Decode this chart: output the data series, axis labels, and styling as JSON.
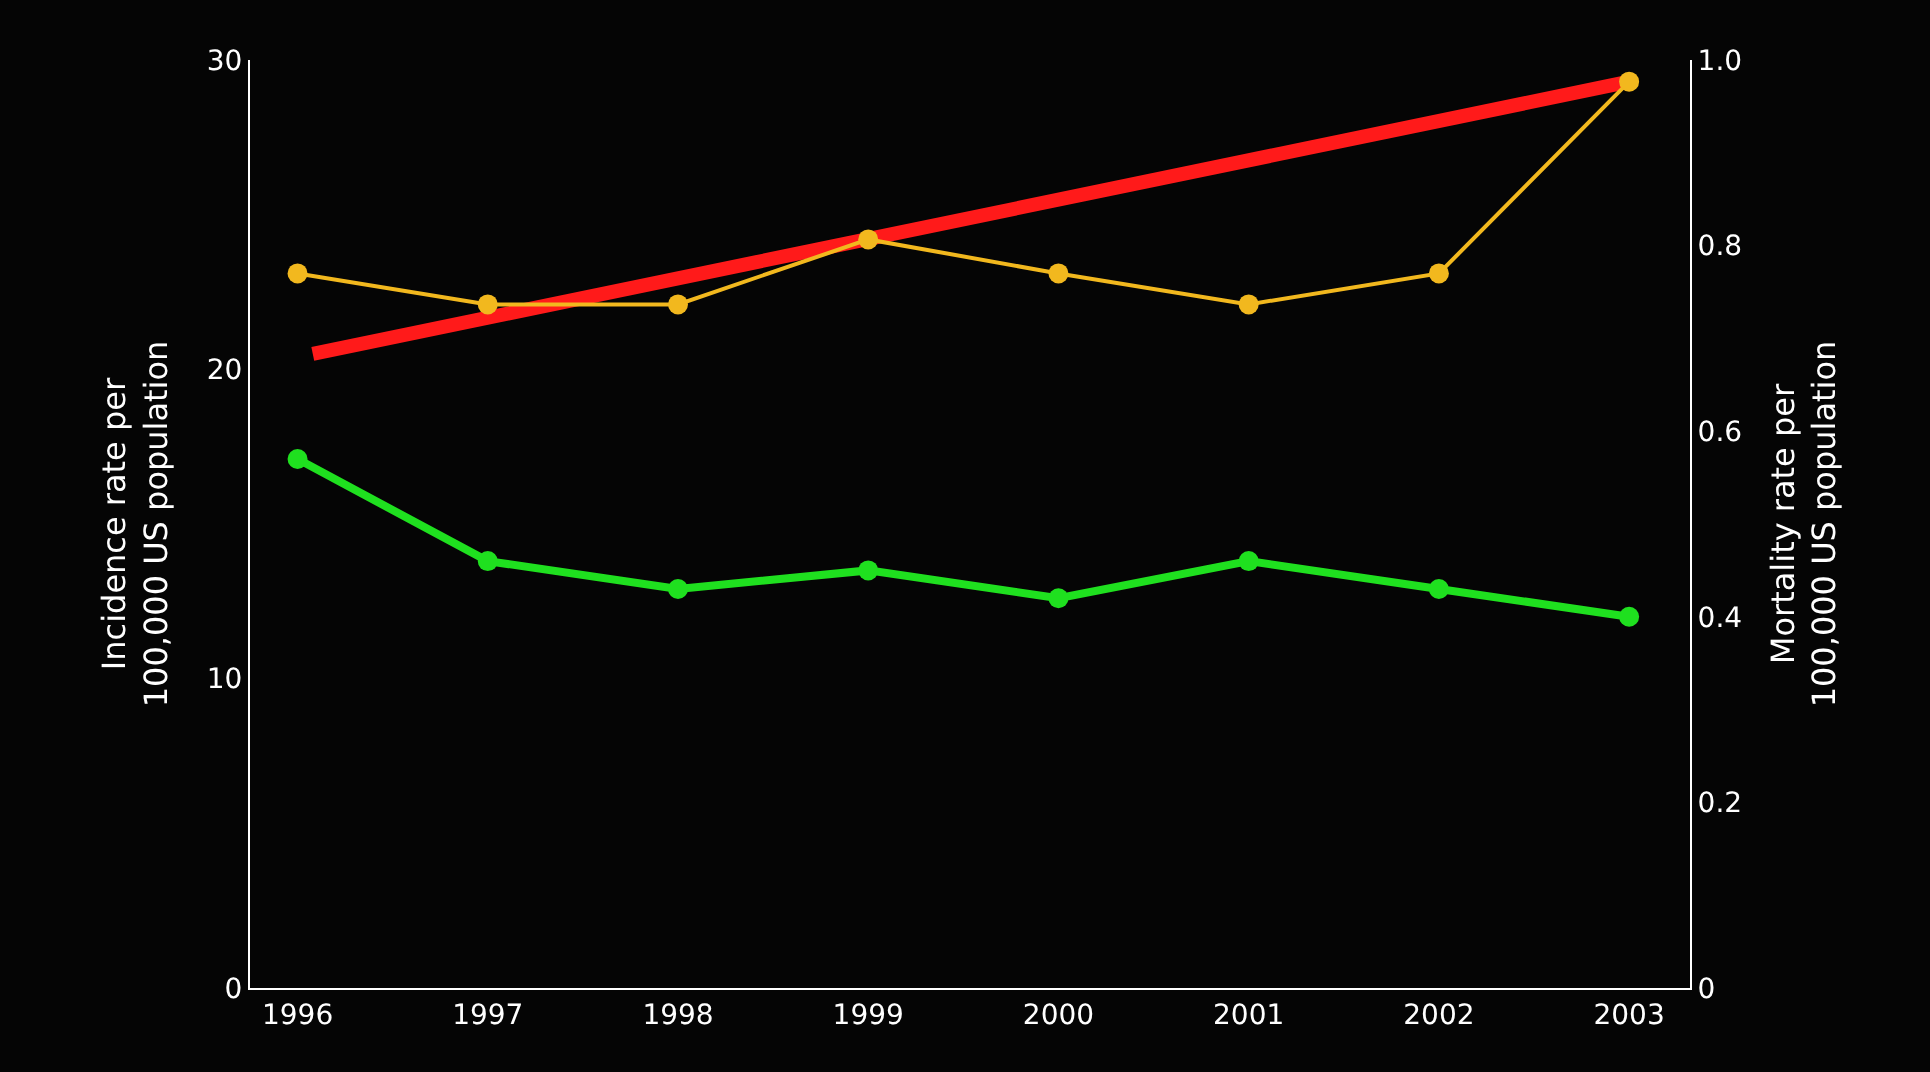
{
  "chart_data": {
    "type": "line",
    "ylabel": "Incidence rate per\n100,000 US population",
    "y2label": "Mortality rate per\n100,000 US population",
    "x": [
      1996,
      1997,
      1998,
      1999,
      2000,
      2001,
      2002,
      2003
    ],
    "xlim": [
      1995.75,
      2003.32
    ],
    "xticks": [
      1996,
      1997,
      1998,
      1999,
      2000,
      2001,
      2002,
      2003
    ],
    "ylim": [
      0,
      30
    ],
    "yticks": [
      0,
      10,
      20,
      30
    ],
    "y2lim": [
      0,
      1.0
    ],
    "y2ticks": [
      {
        "value": 0,
        "label": "0"
      },
      0.2,
      0.4,
      0.6,
      0.8,
      {
        "value": 1.0,
        "label": "1.0"
      }
    ],
    "series": [
      {
        "color": "#ff1a1a",
        "x": [
          1996.08,
          2003
        ],
        "values": [
          20.5,
          29.3
        ],
        "marker": "none"
      },
      {
        "color": "#f2b81e",
        "values": [
          23.1,
          22.1,
          22.1,
          24.2,
          23.1,
          22.1,
          23.1,
          29.3
        ],
        "marker": "circle"
      },
      {
        "color": "#1fe01f",
        "axis": "y2",
        "values": [
          0.57,
          0.46,
          0.43,
          0.45,
          0.42,
          0.46,
          0.43,
          0.4
        ],
        "marker": "circle"
      }
    ]
  }
}
